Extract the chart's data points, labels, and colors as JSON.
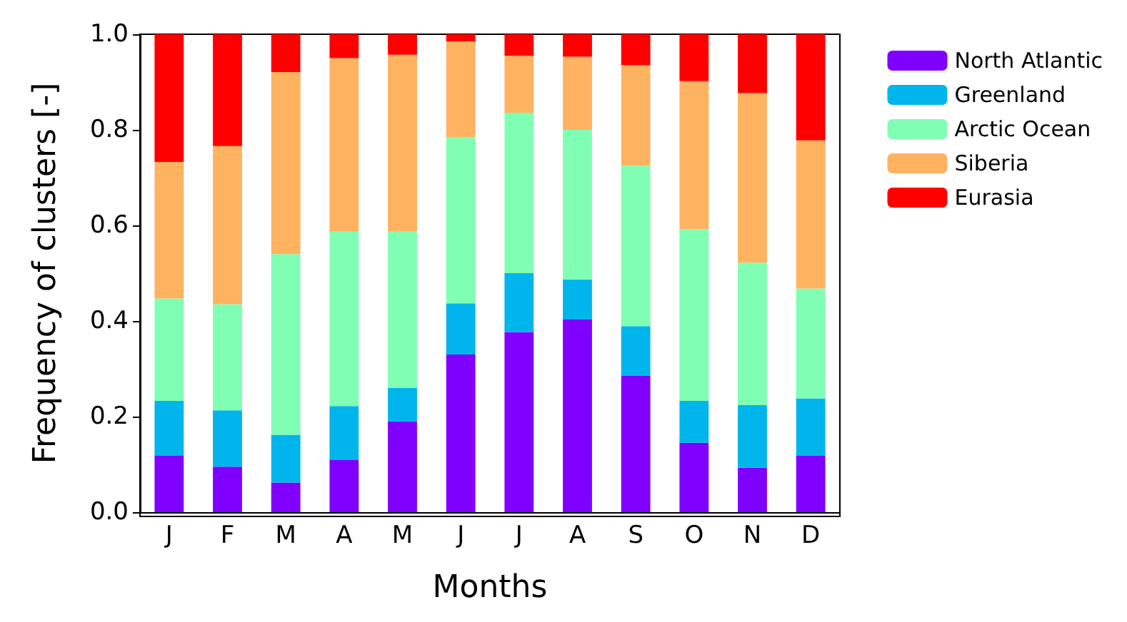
{
  "chart_data": {
    "type": "bar",
    "stacked": true,
    "xlabel": "Months",
    "ylabel": "Frequency of clusters [-]",
    "categories": [
      "J",
      "F",
      "M",
      "A",
      "M",
      "J",
      "J",
      "A",
      "S",
      "O",
      "N",
      "D"
    ],
    "series": [
      {
        "name": "North Atlantic",
        "color": "#8000ff",
        "values": [
          0.118,
          0.095,
          0.062,
          0.109,
          0.19,
          0.33,
          0.377,
          0.403,
          0.285,
          0.145,
          0.093,
          0.118
        ]
      },
      {
        "name": "Greenland",
        "color": "#00b5eb",
        "values": [
          0.115,
          0.118,
          0.1,
          0.113,
          0.07,
          0.107,
          0.123,
          0.084,
          0.104,
          0.088,
          0.131,
          0.12
        ]
      },
      {
        "name": "Arctic Ocean",
        "color": "#80ffb4",
        "values": [
          0.214,
          0.222,
          0.378,
          0.365,
          0.327,
          0.348,
          0.336,
          0.313,
          0.336,
          0.359,
          0.298,
          0.23
        ]
      },
      {
        "name": "Siberia",
        "color": "#ffb360",
        "values": [
          0.286,
          0.331,
          0.381,
          0.363,
          0.37,
          0.2,
          0.119,
          0.153,
          0.21,
          0.31,
          0.355,
          0.31
        ]
      },
      {
        "name": "Eurasia",
        "color": "#ff0000",
        "values": [
          0.267,
          0.234,
          0.079,
          0.05,
          0.043,
          0.015,
          0.045,
          0.047,
          0.065,
          0.098,
          0.123,
          0.222
        ]
      }
    ],
    "ylim": [
      0,
      1
    ],
    "yticks": [
      {
        "value": 0,
        "label": "0.0"
      },
      0.2,
      0.4,
      0.6,
      0.8,
      {
        "value": 1,
        "label": "1.0"
      }
    ],
    "grid": false,
    "legend": "top right"
  }
}
